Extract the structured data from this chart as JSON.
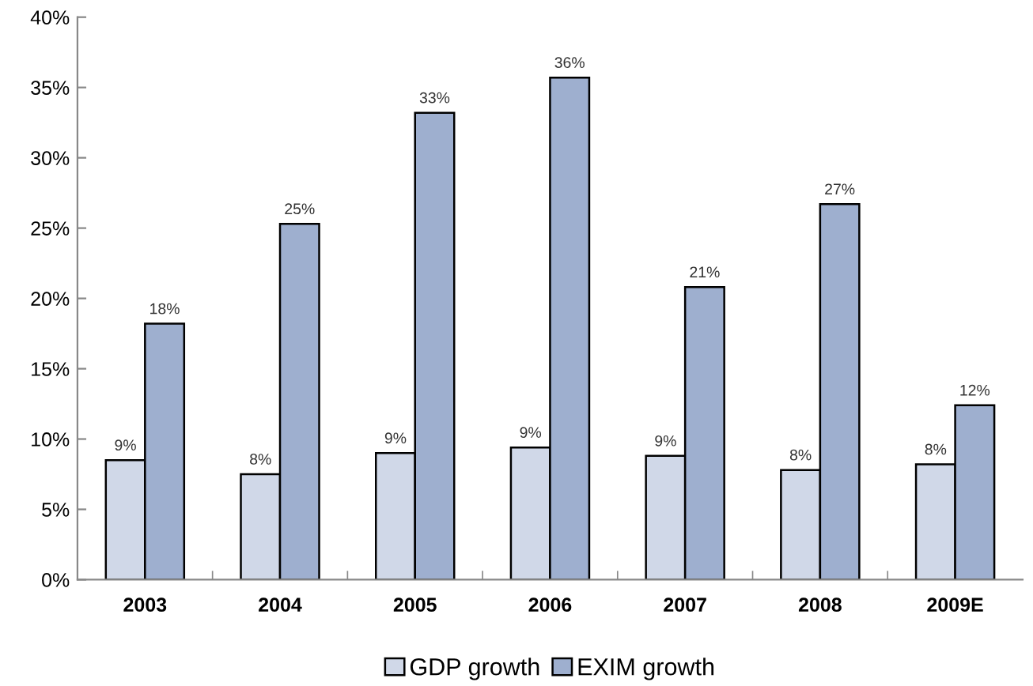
{
  "chart_data": {
    "type": "bar",
    "categories": [
      "2003",
      "2004",
      "2005",
      "2006",
      "2007",
      "2008",
      "2009E"
    ],
    "series": [
      {
        "name": "GDP growth",
        "color": "#d0d8e8",
        "values": [
          8.5,
          7.5,
          9.0,
          9.4,
          8.8,
          7.8,
          8.2
        ],
        "value_labels": [
          "9%",
          "8%",
          "9%",
          "9%",
          "9%",
          "8%",
          "8%"
        ]
      },
      {
        "name": "EXIM growth",
        "color": "#9eafcf",
        "values": [
          18.2,
          25.3,
          33.2,
          35.7,
          20.8,
          26.7,
          12.4
        ],
        "value_labels": [
          "18%",
          "25%",
          "33%",
          "36%",
          "21%",
          "27%",
          "12%"
        ]
      }
    ],
    "ylim": [
      0,
      40
    ],
    "yticks": [
      {
        "value": 0,
        "label": "0%"
      },
      {
        "value": 5,
        "label": "5%"
      },
      {
        "value": 10,
        "label": "10%"
      },
      {
        "value": 15,
        "label": "15%"
      },
      {
        "value": 20,
        "label": "20%"
      },
      {
        "value": 25,
        "label": "25%"
      },
      {
        "value": 30,
        "label": "30%"
      },
      {
        "value": 35,
        "label": "35%"
      },
      {
        "value": 40,
        "label": "40%"
      }
    ],
    "grid": false,
    "legend": "bottom"
  }
}
